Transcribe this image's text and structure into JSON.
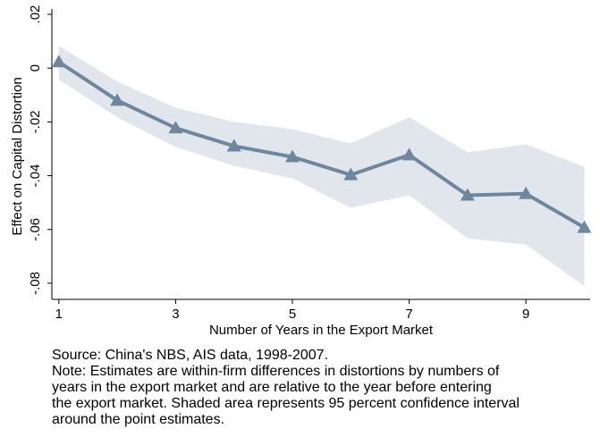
{
  "chart_data": {
    "type": "line",
    "y_label": "Effect on Capital Distortion",
    "x_label": "Number of Years in the Export Market",
    "x": [
      1,
      2,
      3,
      4,
      5,
      6,
      7,
      8,
      9,
      10
    ],
    "values": [
      0.0023,
      -0.012,
      -0.0223,
      -0.029,
      -0.033,
      -0.0397,
      -0.0323,
      -0.0473,
      -0.0467,
      -0.0593
    ],
    "upper": [
      0.0083,
      -0.005,
      -0.0147,
      -0.02,
      -0.0227,
      -0.028,
      -0.0183,
      -0.0313,
      -0.0283,
      -0.0367
    ],
    "lower": [
      -0.0043,
      -0.0183,
      -0.0293,
      -0.0363,
      -0.041,
      -0.052,
      -0.0473,
      -0.0633,
      -0.0657,
      -0.081
    ],
    "color": "#6d889e",
    "band_color": "#e1e6ec",
    "xlim": [
      0.88,
      10.1
    ],
    "xticks": [
      1,
      3,
      5,
      7,
      9
    ],
    "ylim": [
      -0.086,
      0.022
    ],
    "yticks": [
      {
        "value": 0.02,
        "label": ".02"
      },
      0,
      {
        "value": -0.02,
        "label": "-.02"
      },
      {
        "value": -0.04,
        "label": "-.04"
      },
      {
        "value": -0.06,
        "label": "-.06"
      },
      {
        "value": -0.08,
        "label": "-.08"
      }
    ],
    "notes": [
      "Source: China's NBS, AIS data, 1998-2007.",
      "Note: Estimates are within-firm differences in distortions by numbers of",
      "years in the export market and are relative to the year before entering",
      "the export market. Shaded area represents 95 percent confidence interval",
      "around the point estimates."
    ]
  }
}
